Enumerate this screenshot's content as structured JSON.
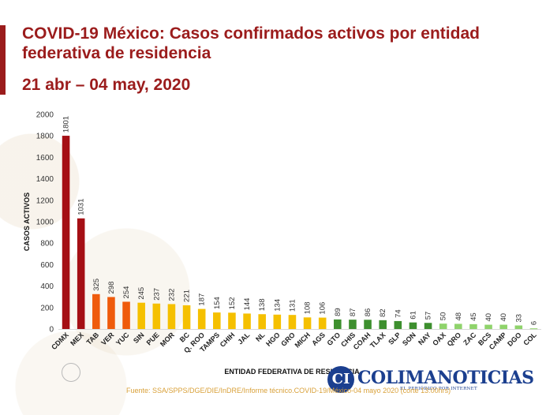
{
  "header": {
    "title": "COVID-19 México: Casos confirmados activos por entidad federativa de residencia",
    "subtitle": "21 abr – 04 may, 2020"
  },
  "footer": {
    "source": "Fuente: SSA/SPPS/DGE/DIE/InDRE/Informe técnico.COVID-19/México-04 mayo 2020 (corte 13:00hrs)"
  },
  "watermark": {
    "mark": "CI",
    "name": "COLIMANOTICIAS",
    "tagline": "EL PERIÓDICO POR INTERNET"
  },
  "colors": {
    "title": "#9b1c1c",
    "very_high": "#a50f15",
    "high": "#ef5b0c",
    "medium": "#f5c000",
    "low": "#3d8f2e",
    "very_low": "#8fd36b",
    "source_text": "#d9a13a"
  },
  "chart_data": {
    "type": "bar",
    "title": "COVID-19 México: Casos confirmados activos por entidad federativa de residencia",
    "xlabel": "ENTIDAD FEDERATIVA DE RESIDENCIA",
    "ylabel": "CASOS ACTIVOS",
    "ylim": [
      0,
      2000
    ],
    "yticks": [
      0,
      200,
      400,
      600,
      800,
      1000,
      1200,
      1400,
      1600,
      1800,
      2000
    ],
    "grid": false,
    "categories": [
      "CDMX",
      "MEX",
      "TAB",
      "VER",
      "YUC",
      "SIN",
      "PUE",
      "MOR",
      "BC",
      "Q. ROO",
      "TAMPS",
      "CHIH",
      "JAL",
      "NL",
      "HGO",
      "GRO",
      "MICH",
      "AGS",
      "GTO",
      "CHIS",
      "COAH",
      "TLAX",
      "SLP",
      "SON",
      "NAY",
      "OAX",
      "QRO",
      "ZAC",
      "BCS",
      "CAMP",
      "DGO",
      "COL"
    ],
    "values": [
      1801,
      1031,
      325,
      298,
      254,
      245,
      237,
      232,
      221,
      187,
      154,
      152,
      144,
      138,
      134,
      131,
      108,
      106,
      89,
      87,
      86,
      82,
      74,
      61,
      57,
      50,
      48,
      45,
      40,
      40,
      33,
      6
    ],
    "bar_colors": [
      "#a50f15",
      "#a50f15",
      "#ef5b0c",
      "#ef5b0c",
      "#ef5b0c",
      "#f5c000",
      "#f5c000",
      "#f5c000",
      "#f5c000",
      "#f5c000",
      "#f5c000",
      "#f5c000",
      "#f5c000",
      "#f5c000",
      "#f5c000",
      "#f5c000",
      "#f5c000",
      "#f5c000",
      "#3d8f2e",
      "#3d8f2e",
      "#3d8f2e",
      "#3d8f2e",
      "#3d8f2e",
      "#3d8f2e",
      "#3d8f2e",
      "#8fd36b",
      "#8fd36b",
      "#8fd36b",
      "#8fd36b",
      "#8fd36b",
      "#8fd36b",
      "#8fd36b"
    ]
  }
}
